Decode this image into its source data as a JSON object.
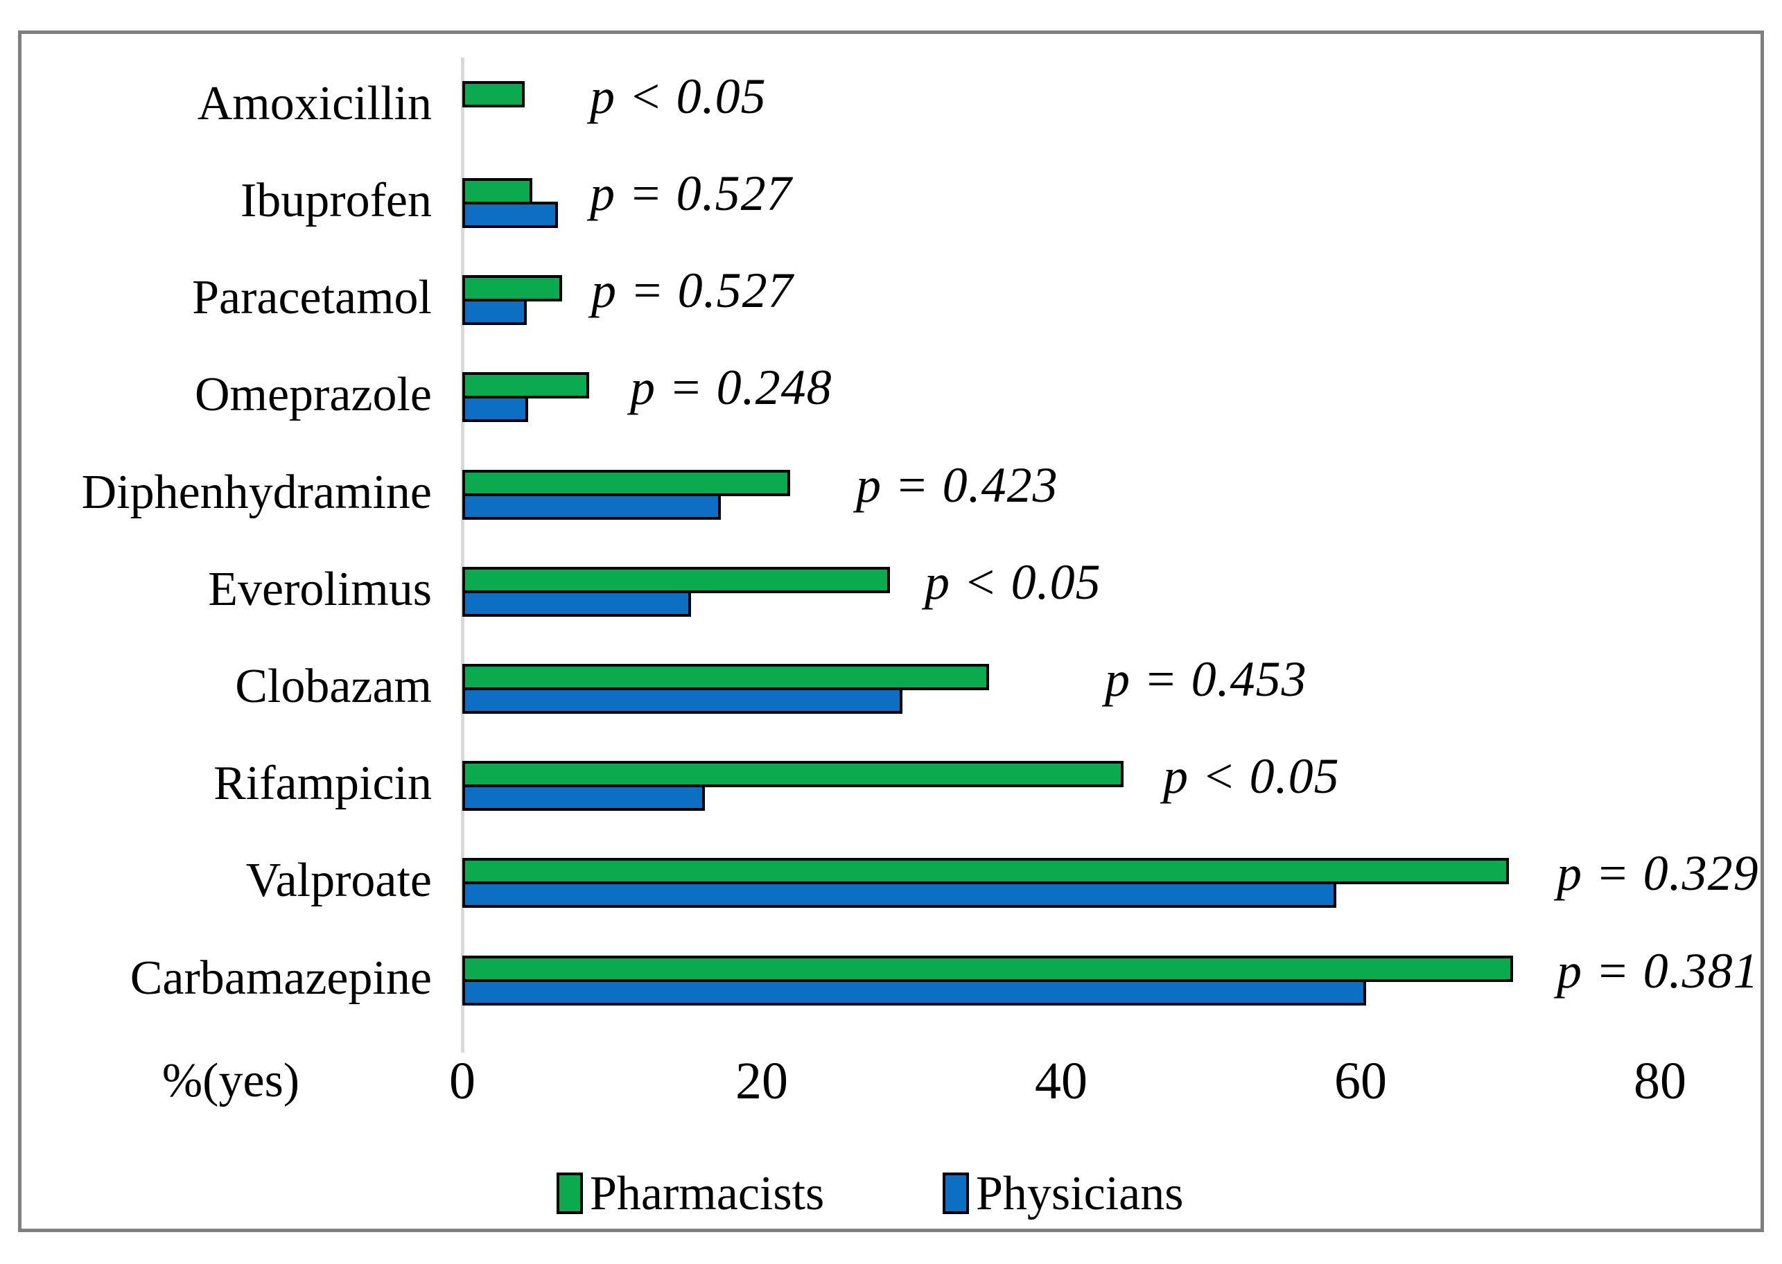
{
  "figure": {
    "xlabel": "%(yes)",
    "frame_color": "#7f7f7f",
    "axis_line_color": "#d9d9d9",
    "legend": {
      "pharmacists_label": "Pharmacists",
      "physicians_label": "Physicians"
    }
  },
  "chart_data": {
    "type": "bar",
    "orientation": "horizontal",
    "title": "",
    "xlabel": "%(yes)",
    "ylabel": "",
    "xlim": [
      0,
      88
    ],
    "x_ticks": [
      0,
      20,
      40,
      60,
      80
    ],
    "grid": false,
    "legend_position": "bottom",
    "categories": [
      "Amoxicillin",
      "Ibuprofen",
      "Paracetamol",
      "Omeprazole",
      "Diphenhydramine",
      "Everolimus",
      "Clobazam",
      "Rifampicin",
      "Valproate",
      "Carbamazepine"
    ],
    "series": [
      {
        "name": "Pharmacists",
        "color": "#0caa4f",
        "values": [
          4.0,
          4.5,
          6.5,
          8.3,
          21.7,
          28.4,
          35.0,
          44.0,
          69.7,
          70.0
        ]
      },
      {
        "name": "Physicians",
        "color": "#0c6fc4",
        "values": [
          null,
          6.2,
          4.1,
          4.2,
          17.1,
          15.1,
          29.2,
          16.0,
          58.2,
          60.2
        ]
      }
    ],
    "annotations": [
      {
        "category": "Amoxicillin",
        "label": "p < 0.05",
        "x": 8.5
      },
      {
        "category": "Ibuprofen",
        "label": "p = 0.527",
        "x": 8.5
      },
      {
        "category": "Paracetamol",
        "label": "p = 0.527",
        "x": 8.6
      },
      {
        "category": "Omeprazole",
        "label": "p = 0.248",
        "x": 11.2
      },
      {
        "category": "Diphenhydramine",
        "label": "p = 0.423",
        "x": 26.3
      },
      {
        "category": "Everolimus",
        "label": "p < 0.05",
        "x": 30.9
      },
      {
        "category": "Clobazam",
        "label": "p = 0.453",
        "x": 42.9
      },
      {
        "category": "Rifampicin",
        "label": "p < 0.05",
        "x": 46.8
      },
      {
        "category": "Valproate",
        "label": "p = 0.329",
        "x": 73.1
      },
      {
        "category": "Carbamazepine",
        "label": "p = 0.381",
        "x": 73.1
      }
    ]
  }
}
